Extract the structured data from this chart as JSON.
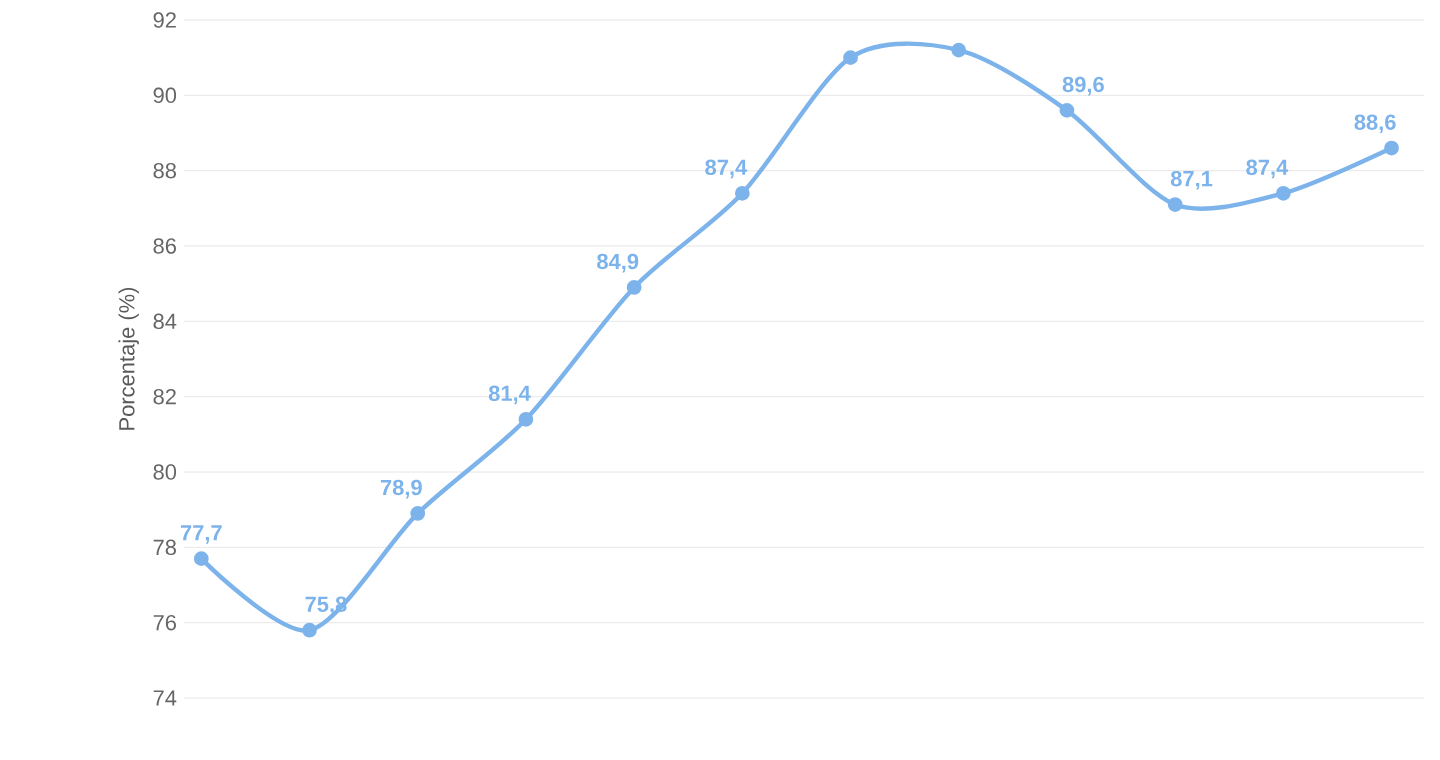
{
  "chart_data": {
    "type": "line",
    "ylabel": "Porcentaje (%)",
    "categories": [
      null,
      null,
      null,
      null,
      null,
      null,
      null,
      null,
      null,
      null,
      null,
      null
    ],
    "series": [
      {
        "color": "#7db3eb",
        "values": [
          77.7,
          75.8,
          78.9,
          81.4,
          84.9,
          87.4,
          91.0,
          91.2,
          89.6,
          87.1,
          87.4,
          88.6
        ],
        "value_labels": [
          "77,7",
          "75,8",
          "78,9",
          "81,4",
          "84,9",
          "87,4",
          null,
          null,
          "89,6",
          "87,1",
          "87,4",
          "88,6"
        ]
      }
    ],
    "ylim": [
      74,
      92
    ],
    "yticks": [
      74,
      76,
      78,
      80,
      82,
      84,
      86,
      88,
      90,
      92
    ],
    "grid": "y",
    "marker": "circle",
    "line_style": "solid"
  }
}
